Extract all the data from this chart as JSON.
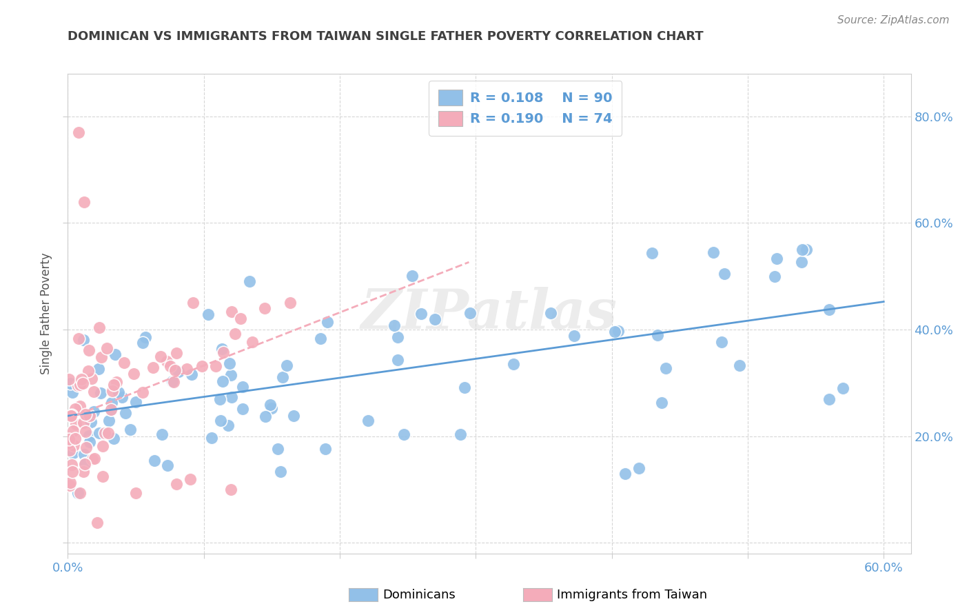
{
  "title": "DOMINICAN VS IMMIGRANTS FROM TAIWAN SINGLE FATHER POVERTY CORRELATION CHART",
  "source": "Source: ZipAtlas.com",
  "ylabel": "Single Father Poverty",
  "right_yticks": [
    "20.0%",
    "40.0%",
    "60.0%",
    "80.0%"
  ],
  "right_ytick_vals": [
    0.2,
    0.4,
    0.6,
    0.8
  ],
  "xlim": [
    0.0,
    0.62
  ],
  "ylim": [
    -0.02,
    0.88
  ],
  "blue_color": "#92C0E8",
  "pink_color": "#F4ACBA",
  "blue_line_color": "#5B9BD5",
  "pink_line_color": "#F4ACBA",
  "watermark": "ZIPatlas",
  "background_color": "#ffffff",
  "grid_color": "#cccccc",
  "tick_color": "#5B9BD5",
  "title_color": "#404040",
  "source_color": "#888888",
  "legend_text_color": "#5B9BD5"
}
